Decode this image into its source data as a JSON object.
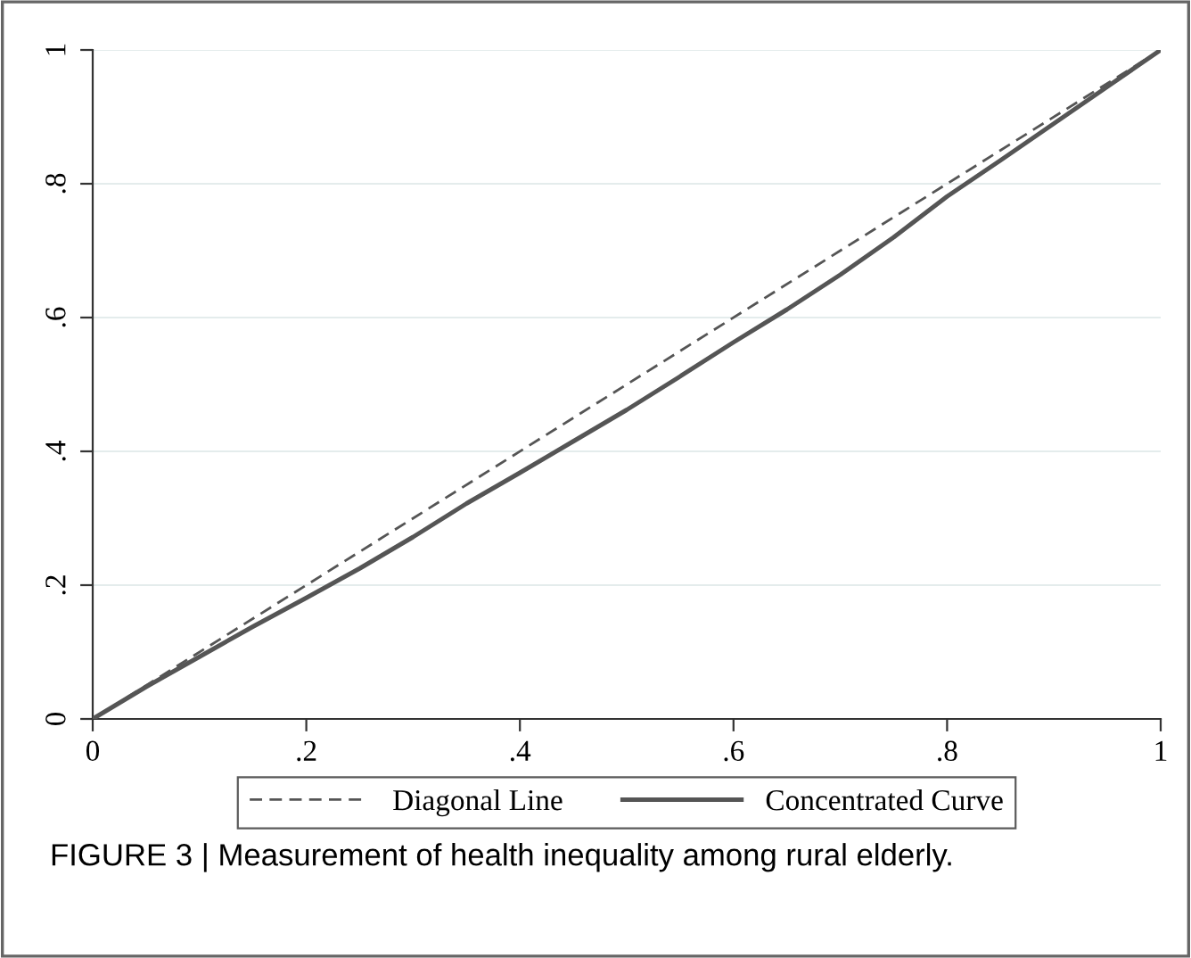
{
  "chart_data": {
    "type": "line",
    "x": [
      0,
      0.05,
      0.1,
      0.15,
      0.2,
      0.25,
      0.3,
      0.35,
      0.4,
      0.45,
      0.5,
      0.55,
      0.6,
      0.65,
      0.7,
      0.75,
      0.8,
      0.85,
      0.9,
      0.95,
      1
    ],
    "series": [
      {
        "name": "Diagonal Line",
        "color": "#555555",
        "line_style": "dashed",
        "x": [
          0,
          1
        ],
        "values": [
          0,
          1
        ]
      },
      {
        "name": "Concentrated Curve",
        "color": "#555555",
        "line_style": "solid",
        "values": [
          0,
          0.048,
          0.093,
          0.138,
          0.181,
          0.225,
          0.272,
          0.322,
          0.368,
          0.415,
          0.462,
          0.512,
          0.563,
          0.612,
          0.664,
          0.72,
          0.781,
          0.835,
          0.89,
          0.945,
          1
        ]
      }
    ],
    "xlim": [
      0,
      1
    ],
    "ylim": [
      0,
      1
    ],
    "xticks": [
      {
        "value": 0,
        "label": "0"
      },
      {
        "value": 0.2,
        "label": ".2"
      },
      {
        "value": 0.4,
        "label": ".4"
      },
      {
        "value": 0.6,
        "label": ".6"
      },
      {
        "value": 0.8,
        "label": ".8"
      },
      {
        "value": 1,
        "label": "1"
      }
    ],
    "yticks": [
      {
        "value": 0,
        "label": "0"
      },
      {
        "value": 0.2,
        "label": ".2"
      },
      {
        "value": 0.4,
        "label": ".4"
      },
      {
        "value": 0.6,
        "label": ".6"
      },
      {
        "value": 0.8,
        "label": ".8"
      },
      {
        "value": 1,
        "label": "1"
      }
    ],
    "grid": "y",
    "legend": "bottom",
    "marker": "none",
    "annotations": [
      "FIGURE 3 | Measurement of health inequality among rural elderly."
    ]
  }
}
